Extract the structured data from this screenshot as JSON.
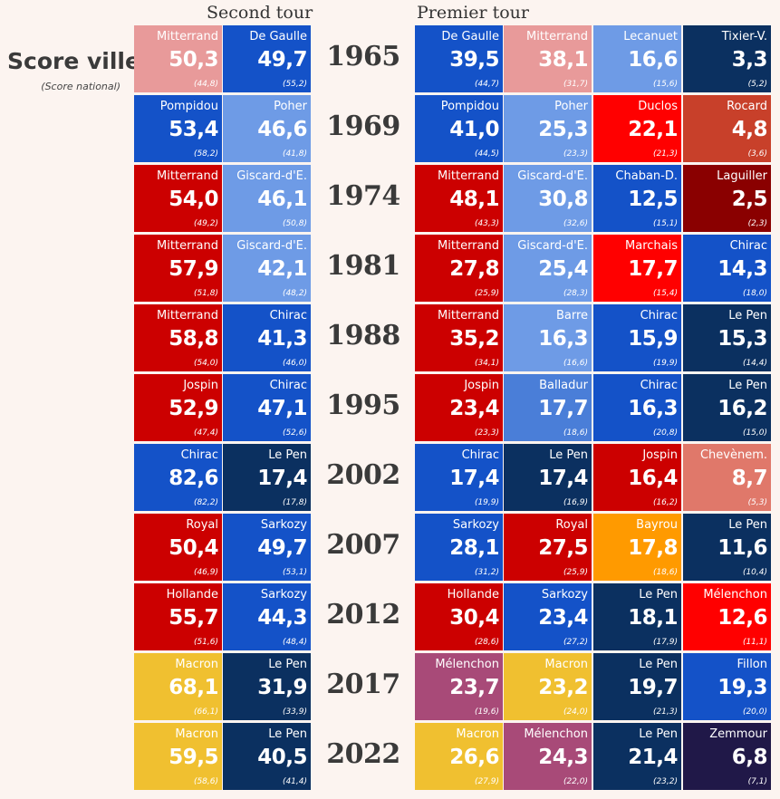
{
  "headers": {
    "second_round": "Second tour",
    "first_round": "Premier tour"
  },
  "legend": {
    "title": "Score ville",
    "subtitle": "(Score national)"
  },
  "colors": {
    "mitterrand_1965": "#e89a9a",
    "degaulle": "#1452c8",
    "lecanuet": "#6e9be6",
    "tixier": "#0b3060",
    "pompidou": "#1452c8",
    "poher": "#6e9be6",
    "duclos": "#ff0000",
    "rocard": "#c8402a",
    "ps": "#cc0000",
    "giscard": "#6e9be6",
    "chaban": "#1452c8",
    "laguiller": "#8a0000",
    "marchais": "#ff0000",
    "chirac": "#1452c8",
    "lepen": "#0b3060",
    "barre": "#6e9be6",
    "balladur": "#4a7ed8",
    "chevenement": "#e0786a",
    "bayrou": "#ff9a00",
    "melenchon": "#a84a78",
    "macron": "#f0c030",
    "fillon": "#1452c8",
    "zemmour": "#201848"
  },
  "chart_data": {
    "type": "table",
    "title": "",
    "years": [
      "1965",
      "1969",
      "1974",
      "1981",
      "1988",
      "1995",
      "2002",
      "2007",
      "2012",
      "2017",
      "2022"
    ],
    "rows": [
      {
        "year": "1965",
        "second": [
          {
            "name": "Mitterrand",
            "score": "50,3",
            "national": "(44,8)",
            "color": "#e89a9a"
          },
          {
            "name": "De Gaulle",
            "score": "49,7",
            "national": "(55,2)",
            "color": "#1452c8"
          }
        ],
        "first": [
          {
            "name": "De Gaulle",
            "score": "39,5",
            "national": "(44,7)",
            "color": "#1452c8"
          },
          {
            "name": "Mitterrand",
            "score": "38,1",
            "national": "(31,7)",
            "color": "#e89a9a"
          },
          {
            "name": "Lecanuet",
            "score": "16,6",
            "national": "(15,6)",
            "color": "#6e9be6"
          },
          {
            "name": "Tixier-V.",
            "score": "3,3",
            "national": "(5,2)",
            "color": "#0b3060"
          }
        ]
      },
      {
        "year": "1969",
        "second": [
          {
            "name": "Pompidou",
            "score": "53,4",
            "national": "(58,2)",
            "color": "#1452c8"
          },
          {
            "name": "Poher",
            "score": "46,6",
            "national": "(41,8)",
            "color": "#6e9be6"
          }
        ],
        "first": [
          {
            "name": "Pompidou",
            "score": "41,0",
            "national": "(44,5)",
            "color": "#1452c8"
          },
          {
            "name": "Poher",
            "score": "25,3",
            "national": "(23,3)",
            "color": "#6e9be6"
          },
          {
            "name": "Duclos",
            "score": "22,1",
            "national": "(21,3)",
            "color": "#ff0000"
          },
          {
            "name": "Rocard",
            "score": "4,8",
            "national": "(3,6)",
            "color": "#c8402a"
          }
        ]
      },
      {
        "year": "1974",
        "second": [
          {
            "name": "Mitterrand",
            "score": "54,0",
            "national": "(49,2)",
            "color": "#cc0000"
          },
          {
            "name": "Giscard-d'E.",
            "score": "46,1",
            "national": "(50,8)",
            "color": "#6e9be6"
          }
        ],
        "first": [
          {
            "name": "Mitterrand",
            "score": "48,1",
            "national": "(43,3)",
            "color": "#cc0000"
          },
          {
            "name": "Giscard-d'E.",
            "score": "30,8",
            "national": "(32,6)",
            "color": "#6e9be6"
          },
          {
            "name": "Chaban-D.",
            "score": "12,5",
            "national": "(15,1)",
            "color": "#1452c8"
          },
          {
            "name": "Laguiller",
            "score": "2,5",
            "national": "(2,3)",
            "color": "#8a0000"
          }
        ]
      },
      {
        "year": "1981",
        "second": [
          {
            "name": "Mitterrand",
            "score": "57,9",
            "national": "(51,8)",
            "color": "#cc0000"
          },
          {
            "name": "Giscard-d'E.",
            "score": "42,1",
            "national": "(48,2)",
            "color": "#6e9be6"
          }
        ],
        "first": [
          {
            "name": "Mitterrand",
            "score": "27,8",
            "national": "(25,9)",
            "color": "#cc0000"
          },
          {
            "name": "Giscard-d'E.",
            "score": "25,4",
            "national": "(28,3)",
            "color": "#6e9be6"
          },
          {
            "name": "Marchais",
            "score": "17,7",
            "national": "(15,4)",
            "color": "#ff0000"
          },
          {
            "name": "Chirac",
            "score": "14,3",
            "national": "(18,0)",
            "color": "#1452c8"
          }
        ]
      },
      {
        "year": "1988",
        "second": [
          {
            "name": "Mitterrand",
            "score": "58,8",
            "national": "(54,0)",
            "color": "#cc0000"
          },
          {
            "name": "Chirac",
            "score": "41,3",
            "national": "(46,0)",
            "color": "#1452c8"
          }
        ],
        "first": [
          {
            "name": "Mitterrand",
            "score": "35,2",
            "national": "(34,1)",
            "color": "#cc0000"
          },
          {
            "name": "Barre",
            "score": "16,3",
            "national": "(16,6)",
            "color": "#6e9be6"
          },
          {
            "name": "Chirac",
            "score": "15,9",
            "national": "(19,9)",
            "color": "#1452c8"
          },
          {
            "name": "Le Pen",
            "score": "15,3",
            "national": "(14,4)",
            "color": "#0b3060"
          }
        ]
      },
      {
        "year": "1995",
        "second": [
          {
            "name": "Jospin",
            "score": "52,9",
            "national": "(47,4)",
            "color": "#cc0000"
          },
          {
            "name": "Chirac",
            "score": "47,1",
            "national": "(52,6)",
            "color": "#1452c8"
          }
        ],
        "first": [
          {
            "name": "Jospin",
            "score": "23,4",
            "national": "(23,3)",
            "color": "#cc0000"
          },
          {
            "name": "Balladur",
            "score": "17,7",
            "national": "(18,6)",
            "color": "#4a7ed8"
          },
          {
            "name": "Chirac",
            "score": "16,3",
            "national": "(20,8)",
            "color": "#1452c8"
          },
          {
            "name": "Le Pen",
            "score": "16,2",
            "national": "(15,0)",
            "color": "#0b3060"
          }
        ]
      },
      {
        "year": "2002",
        "second": [
          {
            "name": "Chirac",
            "score": "82,6",
            "national": "(82,2)",
            "color": "#1452c8"
          },
          {
            "name": "Le Pen",
            "score": "17,4",
            "national": "(17,8)",
            "color": "#0b3060"
          }
        ],
        "first": [
          {
            "name": "Chirac",
            "score": "17,4",
            "national": "(19,9)",
            "color": "#1452c8"
          },
          {
            "name": "Le Pen",
            "score": "17,4",
            "national": "(16,9)",
            "color": "#0b3060"
          },
          {
            "name": "Jospin",
            "score": "16,4",
            "national": "(16,2)",
            "color": "#cc0000"
          },
          {
            "name": "Chevènem.",
            "score": "8,7",
            "national": "(5,3)",
            "color": "#e0786a"
          }
        ]
      },
      {
        "year": "2007",
        "second": [
          {
            "name": "Royal",
            "score": "50,4",
            "national": "(46,9)",
            "color": "#cc0000"
          },
          {
            "name": "Sarkozy",
            "score": "49,7",
            "national": "(53,1)",
            "color": "#1452c8"
          }
        ],
        "first": [
          {
            "name": "Sarkozy",
            "score": "28,1",
            "national": "(31,2)",
            "color": "#1452c8"
          },
          {
            "name": "Royal",
            "score": "27,5",
            "national": "(25,9)",
            "color": "#cc0000"
          },
          {
            "name": "Bayrou",
            "score": "17,8",
            "national": "(18,6)",
            "color": "#ff9a00"
          },
          {
            "name": "Le Pen",
            "score": "11,6",
            "national": "(10,4)",
            "color": "#0b3060"
          }
        ]
      },
      {
        "year": "2012",
        "second": [
          {
            "name": "Hollande",
            "score": "55,7",
            "national": "(51,6)",
            "color": "#cc0000"
          },
          {
            "name": "Sarkozy",
            "score": "44,3",
            "national": "(48,4)",
            "color": "#1452c8"
          }
        ],
        "first": [
          {
            "name": "Hollande",
            "score": "30,4",
            "national": "(28,6)",
            "color": "#cc0000"
          },
          {
            "name": "Sarkozy",
            "score": "23,4",
            "national": "(27,2)",
            "color": "#1452c8"
          },
          {
            "name": "Le Pen",
            "score": "18,1",
            "national": "(17,9)",
            "color": "#0b3060"
          },
          {
            "name": "Mélenchon",
            "score": "12,6",
            "national": "(11,1)",
            "color": "#ff0000"
          }
        ]
      },
      {
        "year": "2017",
        "second": [
          {
            "name": "Macron",
            "score": "68,1",
            "national": "(66,1)",
            "color": "#f0c030"
          },
          {
            "name": "Le Pen",
            "score": "31,9",
            "national": "(33,9)",
            "color": "#0b3060"
          }
        ],
        "first": [
          {
            "name": "Mélenchon",
            "score": "23,7",
            "national": "(19,6)",
            "color": "#a84a78"
          },
          {
            "name": "Macron",
            "score": "23,2",
            "national": "(24,0)",
            "color": "#f0c030"
          },
          {
            "name": "Le Pen",
            "score": "19,7",
            "national": "(21,3)",
            "color": "#0b3060"
          },
          {
            "name": "Fillon",
            "score": "19,3",
            "national": "(20,0)",
            "color": "#1452c8"
          }
        ]
      },
      {
        "year": "2022",
        "second": [
          {
            "name": "Macron",
            "score": "59,5",
            "national": "(58,6)",
            "color": "#f0c030"
          },
          {
            "name": "Le Pen",
            "score": "40,5",
            "national": "(41,4)",
            "color": "#0b3060"
          }
        ],
        "first": [
          {
            "name": "Macron",
            "score": "26,6",
            "national": "(27,9)",
            "color": "#f0c030"
          },
          {
            "name": "Mélenchon",
            "score": "24,3",
            "national": "(22,0)",
            "color": "#a84a78"
          },
          {
            "name": "Le Pen",
            "score": "21,4",
            "national": "(23,2)",
            "color": "#0b3060"
          },
          {
            "name": "Zemmour",
            "score": "6,8",
            "national": "(7,1)",
            "color": "#201848"
          }
        ]
      }
    ]
  }
}
